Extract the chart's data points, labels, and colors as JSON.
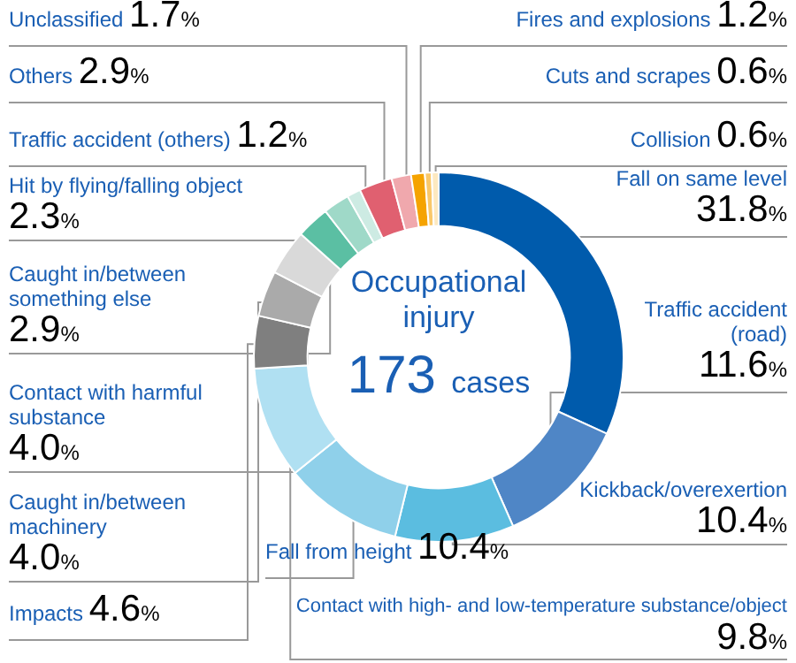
{
  "chart_data": {
    "type": "donut",
    "categories": [
      "Fall on same level",
      "Traffic accident (road)",
      "Kickback/overexertion",
      "Fall from height",
      "Contact with high- and low-temperature substance/object",
      "Impacts",
      "Caught in/between machinery",
      "Contact with harmful substance",
      "Caught in/between something else",
      "Hit by flying/falling object",
      "Traffic accident (others)",
      "Others",
      "Unclassified",
      "Fires and explosions",
      "Cuts and scrapes",
      "Collision"
    ],
    "values": [
      31.8,
      11.6,
      10.4,
      10.4,
      9.8,
      4.6,
      4.0,
      4.0,
      2.9,
      2.3,
      1.2,
      2.9,
      1.7,
      1.2,
      0.6,
      0.6
    ],
    "value_labels": [
      "31.8%",
      "11.6%",
      "10.4%",
      "10.4%",
      "9.8%",
      "4.6%",
      "4.0%",
      "4.0%",
      "2.9%",
      "2.3%",
      "1.2%",
      "2.9%",
      "1.7%",
      "1.2%",
      "0.6%",
      "0.6%"
    ],
    "colors": [
      "#005bac",
      "#4f86c6",
      "#5bbde0",
      "#8fd0ea",
      "#b0e0f2",
      "#7f7f7f",
      "#aaaaaa",
      "#d9d9d9",
      "#5bbfa3",
      "#9fd9c8",
      "#cdebe3",
      "#e06070",
      "#f0a8ad",
      "#f5a300",
      "#f9c86a",
      "#fde9c0"
    ],
    "annotations": [
      "Occupational injury",
      "173 cases"
    ],
    "legend": false
  }
}
